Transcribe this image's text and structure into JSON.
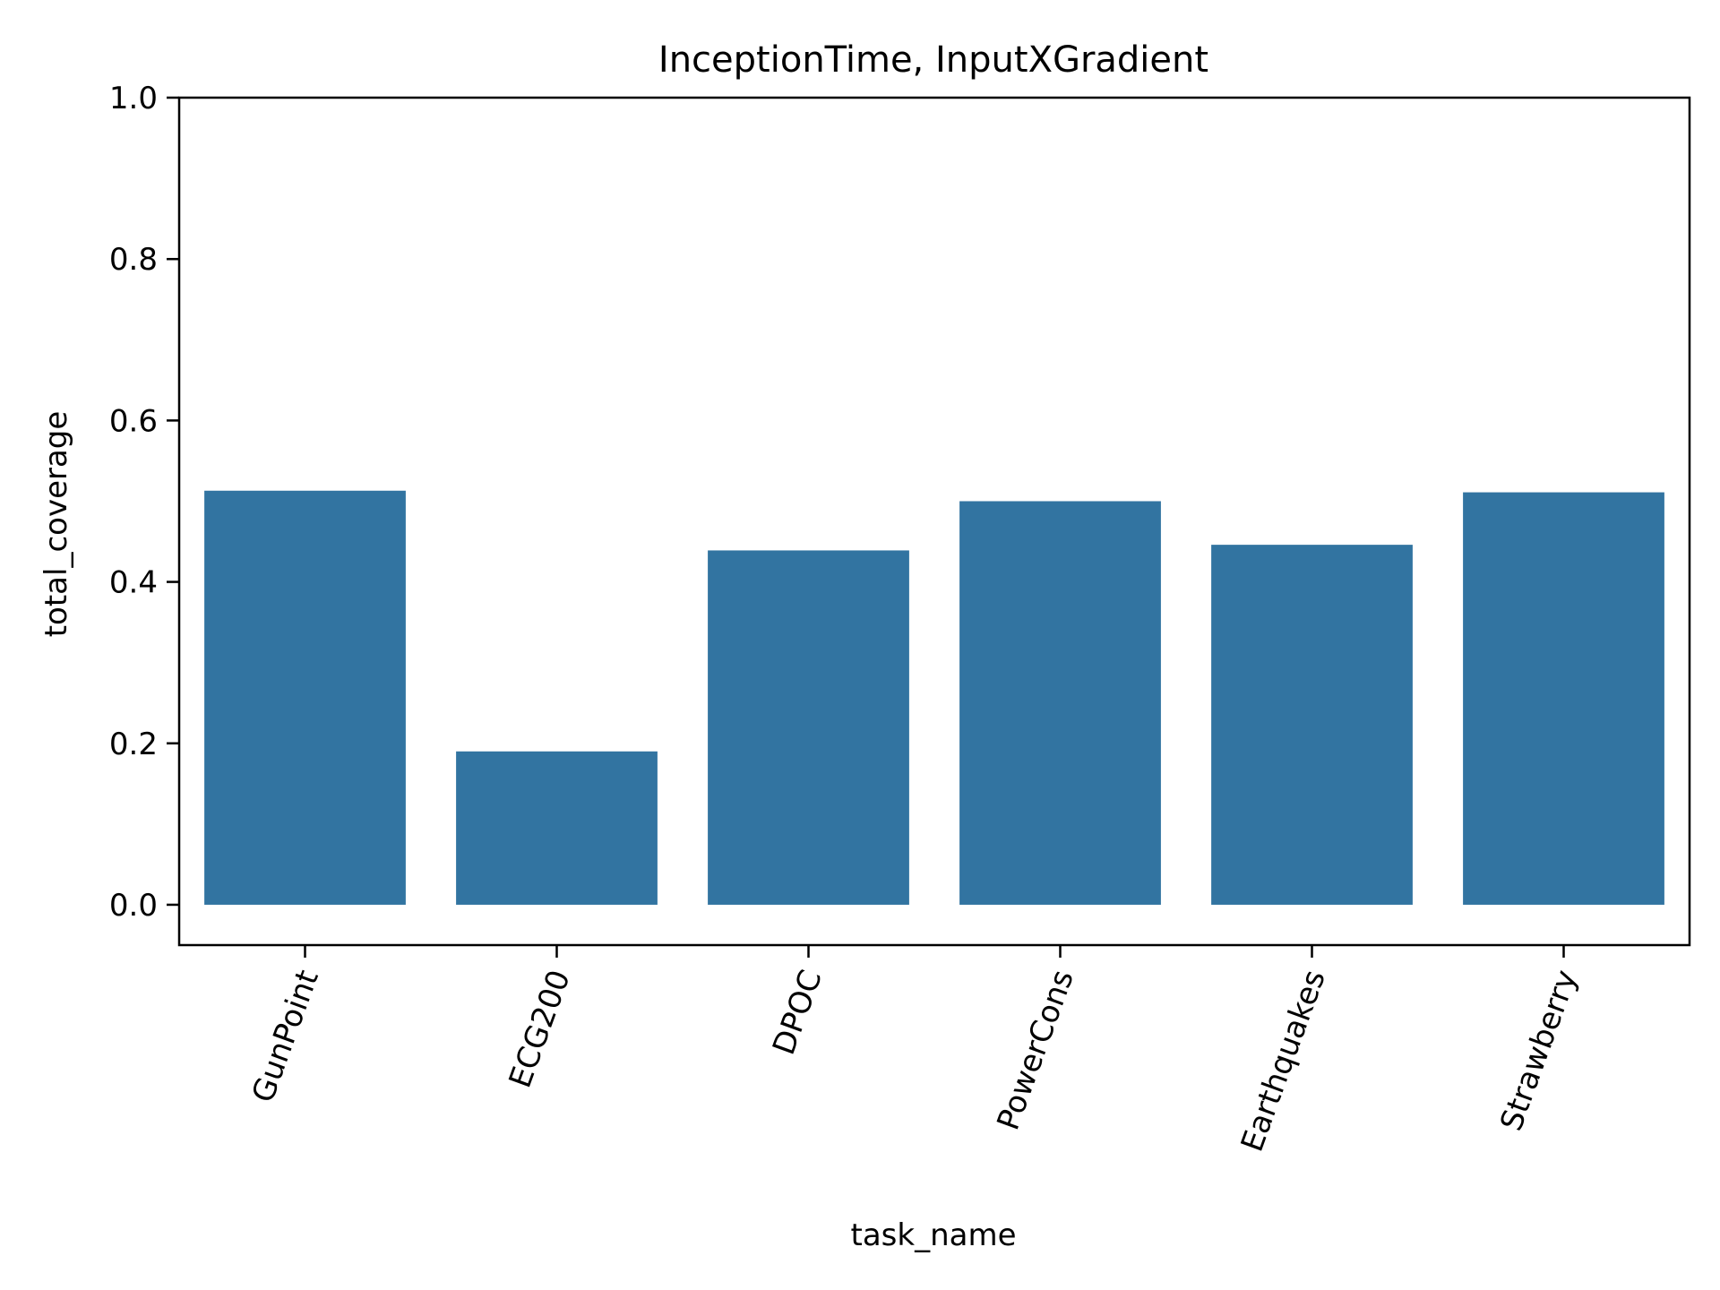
{
  "chart_data": {
    "type": "bar",
    "title": "InceptionTime, InputXGradient",
    "xlabel": "task_name",
    "ylabel": "total_coverage",
    "categories": [
      "GunPoint",
      "ECG200",
      "DPOC",
      "PowerCons",
      "Earthquakes",
      "Strawberry"
    ],
    "values": [
      0.513,
      0.19,
      0.439,
      0.5,
      0.446,
      0.511
    ],
    "ylim": [
      -0.05,
      1.0
    ],
    "yticks": [
      0.0,
      0.2,
      0.4,
      0.6,
      0.8,
      1.0
    ],
    "ytick_labels": [
      "0.0",
      "0.2",
      "0.4",
      "0.6",
      "0.8",
      "1.0"
    ],
    "xtick_rotation_deg": 70,
    "bar_color": "#3274a1",
    "grid": false,
    "legend": "none"
  }
}
